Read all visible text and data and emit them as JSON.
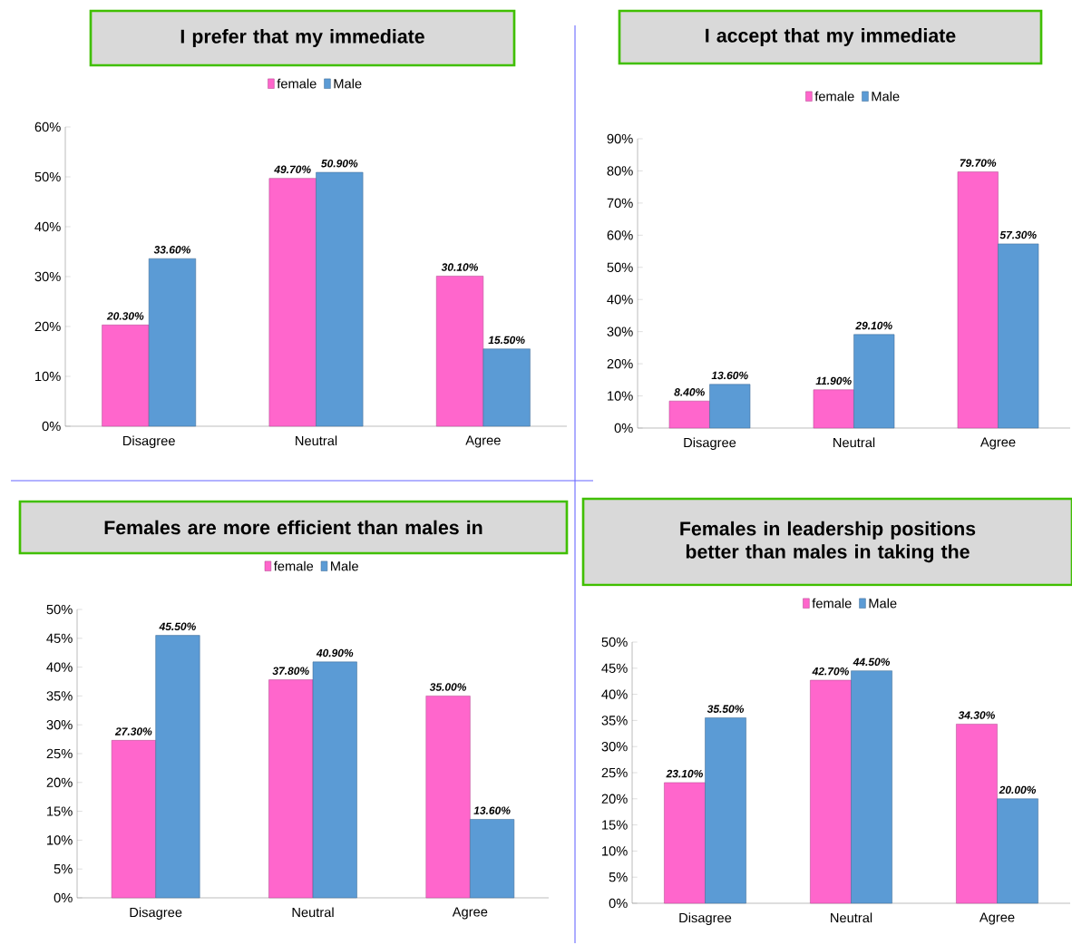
{
  "chart_data": [
    {
      "type": "bar",
      "title": "I prefer that my immediate",
      "categories": [
        "Disagree",
        "Neutral",
        "Agree"
      ],
      "legend": "top",
      "ylim": [
        0,
        60
      ],
      "yticks": [
        {
          "value": 0,
          "label": "0%"
        },
        {
          "value": 10,
          "label": "10%"
        },
        {
          "value": 20,
          "label": "20%"
        },
        {
          "value": 30,
          "label": "30%"
        },
        {
          "value": 40,
          "label": "40%"
        },
        {
          "value": 50,
          "label": "50%"
        },
        {
          "value": 60,
          "label": "60%"
        }
      ],
      "series": [
        {
          "name": "female",
          "color": "#ff66cc",
          "values": [
            20.3,
            49.7,
            30.1
          ],
          "value_labels": [
            "20.30%",
            "49.70%",
            "30.10%"
          ]
        },
        {
          "name": "Male",
          "color": "#5b9bd5",
          "values": [
            33.6,
            50.9,
            15.5
          ],
          "value_labels": [
            "33.60%",
            "50.90%",
            "15.50%"
          ]
        }
      ]
    },
    {
      "type": "bar",
      "title": "I accept that my immediate",
      "categories": [
        "Disagree",
        "Neutral",
        "Agree"
      ],
      "legend": "top",
      "ylim": [
        0,
        90
      ],
      "yticks": [
        {
          "value": 0,
          "label": "0%"
        },
        {
          "value": 10,
          "label": "10%"
        },
        {
          "value": 20,
          "label": "20%"
        },
        {
          "value": 30,
          "label": "30%"
        },
        {
          "value": 40,
          "label": "40%"
        },
        {
          "value": 50,
          "label": "50%"
        },
        {
          "value": 60,
          "label": "60%"
        },
        {
          "value": 70,
          "label": "70%"
        },
        {
          "value": 80,
          "label": "80%"
        },
        {
          "value": 90,
          "label": "90%"
        }
      ],
      "series": [
        {
          "name": "female",
          "color": "#ff66cc",
          "values": [
            8.4,
            11.9,
            79.7
          ],
          "value_labels": [
            "8.40%",
            "11.90%",
            "79.70%"
          ]
        },
        {
          "name": "Male",
          "color": "#5b9bd5",
          "values": [
            13.6,
            29.1,
            57.3
          ],
          "value_labels": [
            "13.60%",
            "29.10%",
            "57.30%"
          ]
        }
      ]
    },
    {
      "type": "bar",
      "title": "Females are more efficient than males in",
      "categories": [
        "Disagree",
        "Neutral",
        "Agree"
      ],
      "legend": "top",
      "ylim": [
        0,
        50
      ],
      "yticks": [
        {
          "value": 0,
          "label": "0%"
        },
        {
          "value": 5,
          "label": "5%"
        },
        {
          "value": 10,
          "label": "10%"
        },
        {
          "value": 15,
          "label": "15%"
        },
        {
          "value": 20,
          "label": "20%"
        },
        {
          "value": 25,
          "label": "25%"
        },
        {
          "value": 30,
          "label": "30%"
        },
        {
          "value": 35,
          "label": "35%"
        },
        {
          "value": 40,
          "label": "40%"
        },
        {
          "value": 45,
          "label": "45%"
        },
        {
          "value": 50,
          "label": "50%"
        }
      ],
      "series": [
        {
          "name": "female",
          "color": "#ff66cc",
          "values": [
            27.3,
            37.8,
            35.0
          ],
          "value_labels": [
            "27.30%",
            "37.80%",
            "35.00%"
          ]
        },
        {
          "name": "Male",
          "color": "#5b9bd5",
          "values": [
            45.5,
            40.9,
            13.6
          ],
          "value_labels": [
            "45.50%",
            "40.90%",
            "13.60%"
          ]
        }
      ]
    },
    {
      "type": "bar",
      "title": "Females in leadership positions better than males in taking the",
      "categories": [
        "Disagree",
        "Neutral",
        "Agree"
      ],
      "legend": "top",
      "ylim": [
        0,
        50
      ],
      "yticks": [
        {
          "value": 0,
          "label": "0%"
        },
        {
          "value": 5,
          "label": "5%"
        },
        {
          "value": 10,
          "label": "10%"
        },
        {
          "value": 15,
          "label": "15%"
        },
        {
          "value": 20,
          "label": "20%"
        },
        {
          "value": 25,
          "label": "25%"
        },
        {
          "value": 30,
          "label": "30%"
        },
        {
          "value": 35,
          "label": "35%"
        },
        {
          "value": 40,
          "label": "40%"
        },
        {
          "value": 45,
          "label": "45%"
        },
        {
          "value": 50,
          "label": "50%"
        }
      ],
      "series": [
        {
          "name": "female",
          "color": "#ff66cc",
          "values": [
            23.1,
            42.7,
            34.3
          ],
          "value_labels": [
            "23.10%",
            "42.70%",
            "34.30%"
          ]
        },
        {
          "name": "Male",
          "color": "#5b9bd5",
          "values": [
            35.5,
            44.5,
            20.0
          ],
          "value_labels": [
            "35.50%",
            "44.50%",
            "20.00%"
          ]
        }
      ]
    }
  ]
}
